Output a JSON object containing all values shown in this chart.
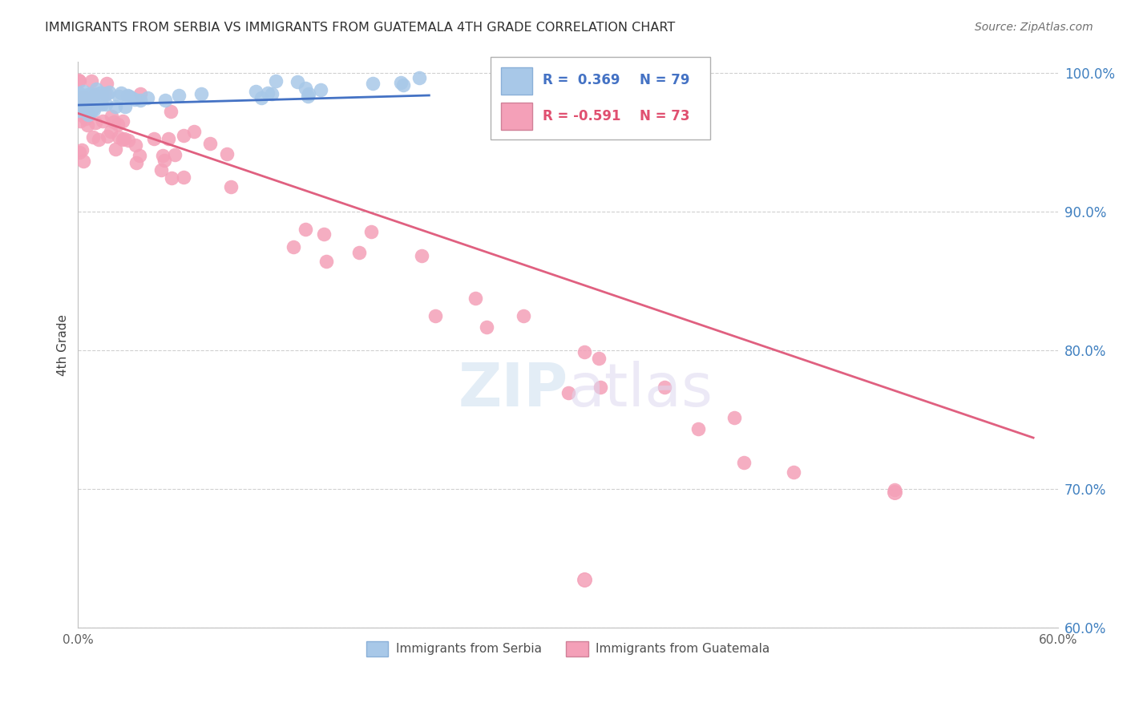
{
  "title": "IMMIGRANTS FROM SERBIA VS IMMIGRANTS FROM GUATEMALA 4TH GRADE CORRELATION CHART",
  "source": "Source: ZipAtlas.com",
  "ylabel": "4th Grade",
  "xlim": [
    0.0,
    0.6
  ],
  "ylim": [
    0.6,
    1.008
  ],
  "yticks": [
    0.6,
    0.7,
    0.8,
    0.9,
    1.0
  ],
  "ytick_labels": [
    "60.0%",
    "70.0%",
    "80.0%",
    "90.0%",
    "100.0%"
  ],
  "serbia_R": 0.369,
  "serbia_N": 79,
  "guatemala_R": -0.591,
  "guatemala_N": 73,
  "serbia_color": "#a8c8e8",
  "guatemala_color": "#f4a0b8",
  "serbia_line_color": "#4472c4",
  "guatemala_line_color": "#e06080",
  "serbia_trendline": [
    [
      0.0,
      0.977
    ],
    [
      0.215,
      0.984
    ]
  ],
  "guatemala_trendline": [
    [
      0.0,
      0.971
    ],
    [
      0.585,
      0.737
    ]
  ],
  "watermark_zip": "ZIP",
  "watermark_atlas": "atlas",
  "background_color": "#ffffff",
  "grid_color": "#d0d0d0",
  "title_color": "#303030",
  "axis_label_color": "#404040",
  "tick_color_y": "#4080c0",
  "tick_color_x": "#606060"
}
